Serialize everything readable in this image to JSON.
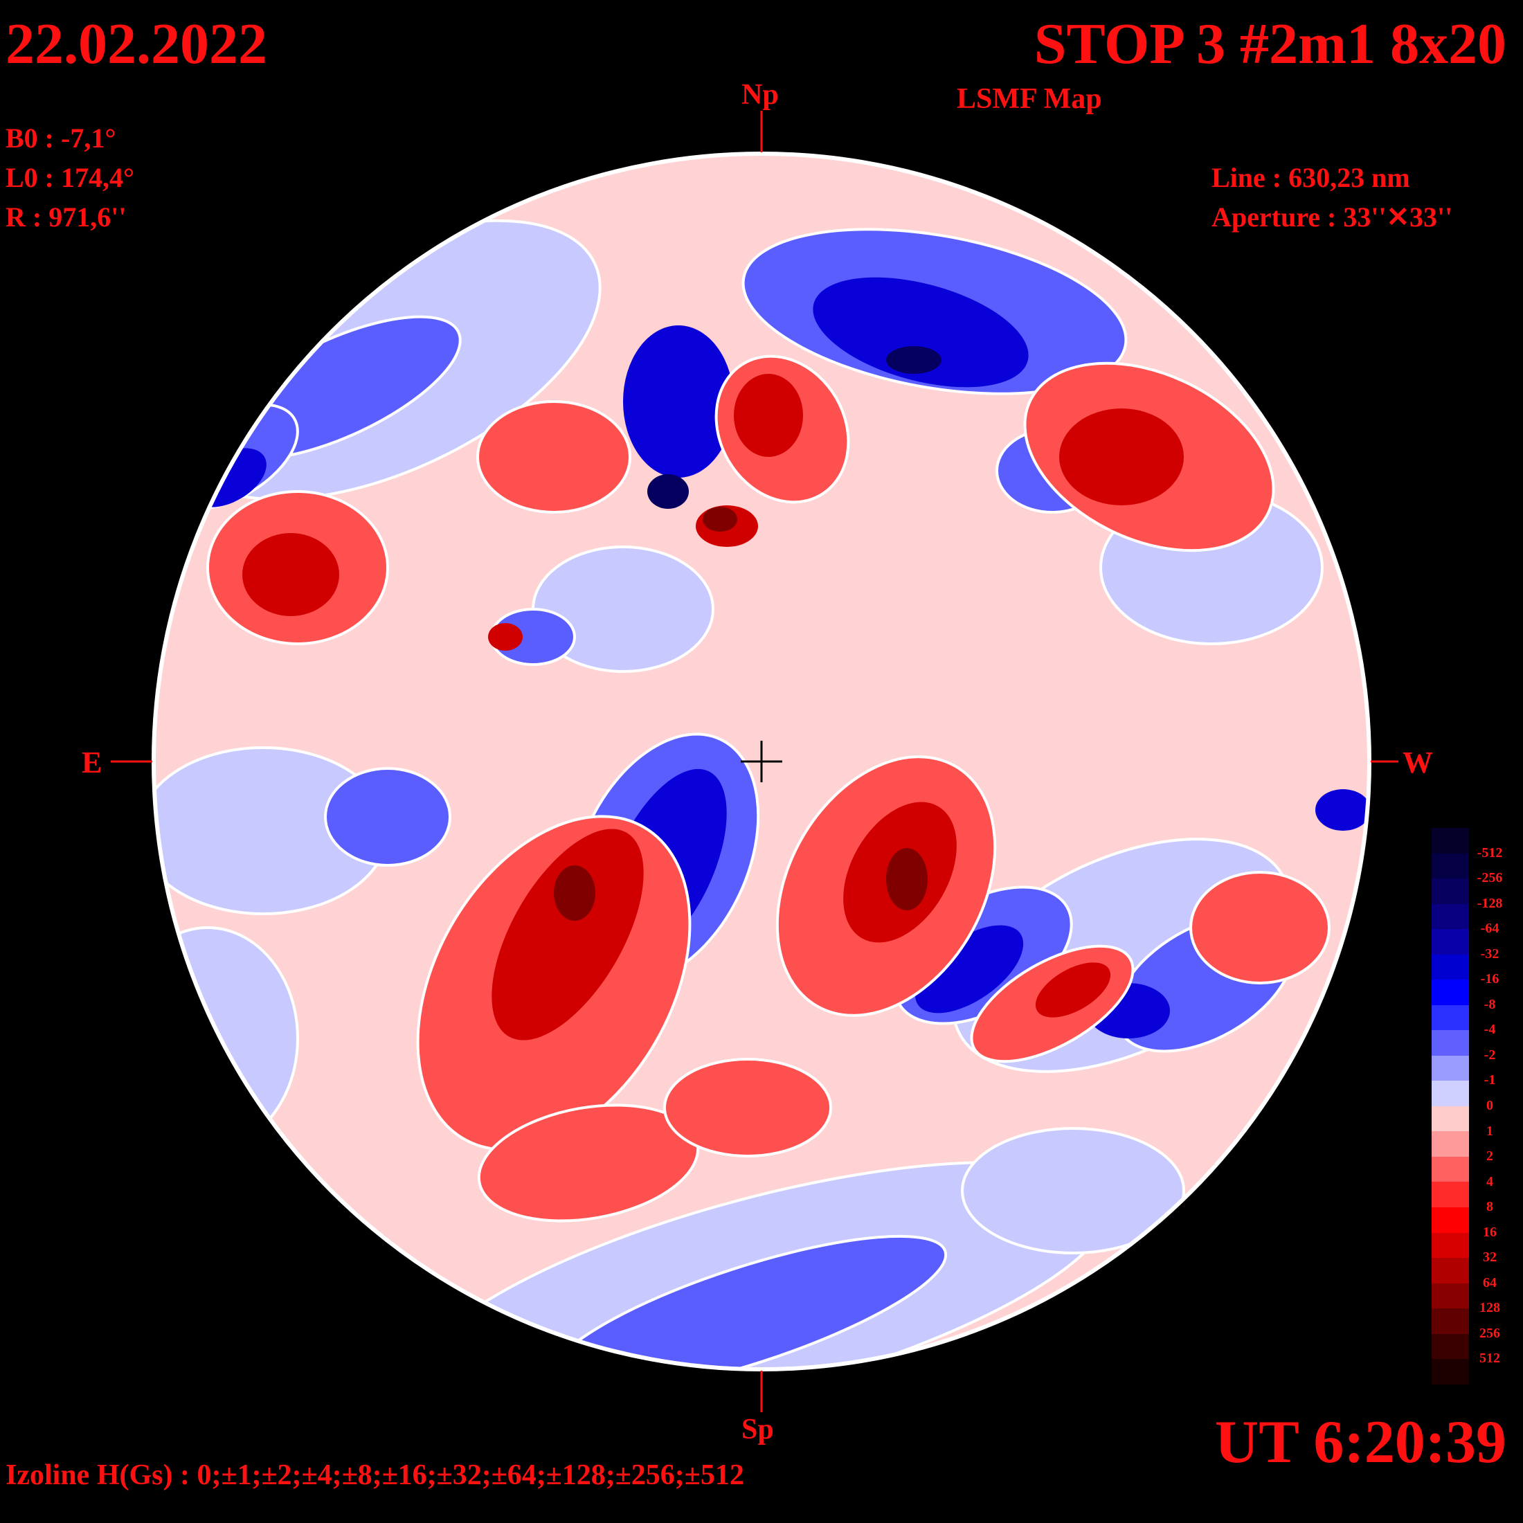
{
  "header": {
    "date": "22.02.2022",
    "title": "STOP 3 #2m1 8x20",
    "subtitle": "LSMF  Map"
  },
  "parameters": {
    "b0": "B0 : -7,1°",
    "l0": "L0 : 174,4°",
    "radius": "R  : 971,6''"
  },
  "instrument": {
    "line": "Line :  630,23 nm",
    "aperture": "Aperture : 33''✕33''"
  },
  "orientation": {
    "north": "Np",
    "south": "Sp",
    "east": "E",
    "west": "W"
  },
  "time": "UT 6:20:39",
  "izoline": "Izoline H(Gs) : 0;±1;±2;±4;±8;±16;±32;±64;±128;±256;±512",
  "colorbar": {
    "labels": [
      "-512",
      "-256",
      "-128",
      "-64",
      "-32",
      "-16",
      "-8",
      "-4",
      "-2",
      "-1",
      "0",
      "1",
      "2",
      "4",
      "8",
      "16",
      "32",
      "64",
      "128",
      "256",
      "512"
    ],
    "colors": [
      "#04002a",
      "#050045",
      "#07005e",
      "#080080",
      "#0a00a8",
      "#0000d0",
      "#0000ff",
      "#2a30ff",
      "#6060ff",
      "#9a9cff",
      "#cfd0ff",
      "#ffcccc",
      "#ff9a9a",
      "#ff6060",
      "#ff2a2a",
      "#ff0000",
      "#d60000",
      "#b00000",
      "#880000",
      "#600000",
      "#3a0000",
      "#1c0000"
    ]
  },
  "field_colors": {
    "strong_negative": "#0a00b0",
    "negative": "#3a3cff",
    "weak_negative": "#c8caff",
    "weak_positive": "#ffc8c8",
    "positive": "#ff3a3a",
    "strong_positive": "#c00000",
    "contour": "#ffffff"
  }
}
